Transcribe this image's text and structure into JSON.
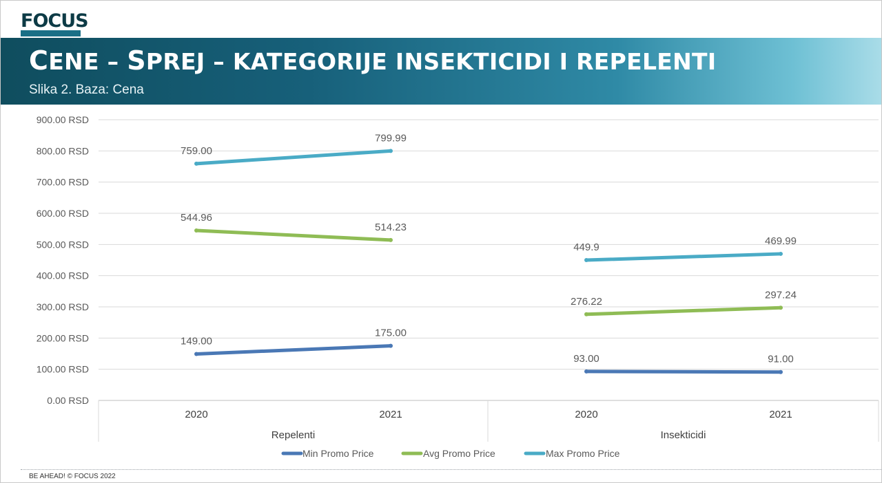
{
  "header": {
    "logo_text": "FOCUS",
    "title_parts": [
      "C",
      "ENE – ",
      "S",
      "PREJ – KATEGORIJE INSEKTICIDI I REPELENTI"
    ],
    "subtitle": "Slika 2. Baza: Cena"
  },
  "footer": {
    "text": "BE AHEAD! © FOCUS 2022"
  },
  "colors": {
    "banner_dark": "#0f4d5e",
    "banner_light": "#a9dce8",
    "min_series": "#4a78b5",
    "avg_series": "#8fbc55",
    "max_series": "#4aabc6"
  },
  "chart_data": {
    "type": "line",
    "groups": [
      {
        "name": "Repelenti",
        "years": [
          "2020",
          "2021"
        ]
      },
      {
        "name": "Insekticidi",
        "years": [
          "2020",
          "2021"
        ]
      }
    ],
    "y_ticks": [
      "0.00 RSD",
      "100.00 RSD",
      "200.00 RSD",
      "300.00 RSD",
      "400.00 RSD",
      "500.00 RSD",
      "600.00 RSD",
      "700.00 RSD",
      "800.00 RSD",
      "900.00 RSD"
    ],
    "ylim": [
      0,
      900
    ],
    "grid": true,
    "legend_position": "bottom",
    "series": [
      {
        "name": "Min Promo Price",
        "color": "#4a78b5",
        "segments": [
          {
            "values": [
              149.0,
              175.0
            ],
            "labels": [
              "149.00",
              "175.00"
            ]
          },
          {
            "values": [
              93.0,
              91.0
            ],
            "labels": [
              "93.00",
              "91.00"
            ]
          }
        ]
      },
      {
        "name": "Avg Promo Price",
        "color": "#8fbc55",
        "segments": [
          {
            "values": [
              544.96,
              514.23
            ],
            "labels": [
              "544.96",
              "514.23"
            ]
          },
          {
            "values": [
              276.22,
              297.24
            ],
            "labels": [
              "276.22",
              "297.24"
            ]
          }
        ]
      },
      {
        "name": "Max Promo Price",
        "color": "#4aabc6",
        "segments": [
          {
            "values": [
              759.0,
              799.99
            ],
            "labels": [
              "759.00",
              "799.99"
            ]
          },
          {
            "values": [
              449.9,
              469.99
            ],
            "labels": [
              "449.9",
              "469.99"
            ]
          }
        ]
      }
    ]
  }
}
